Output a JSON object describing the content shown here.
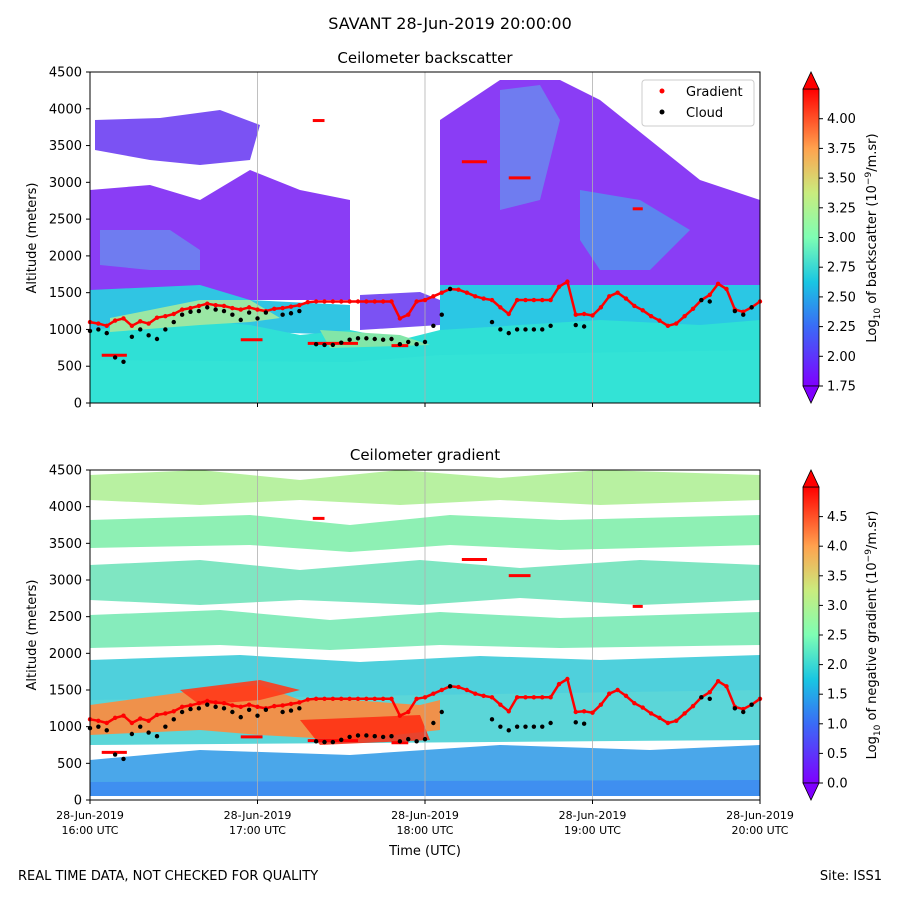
{
  "figure": {
    "suptitle": "SAVANT 28-Jun-2019 20:00:00",
    "footer_left": "REAL TIME DATA, NOT CHECKED FOR QUALITY",
    "footer_right": "Site: ISS1",
    "xlabel": "Time (UTC)",
    "x_ticks": [
      {
        "line1": "28-Jun-2019",
        "line2": "16:00 UTC"
      },
      {
        "line1": "28-Jun-2019",
        "line2": "17:00 UTC"
      },
      {
        "line1": "28-Jun-2019",
        "line2": "18:00 UTC"
      },
      {
        "line1": "28-Jun-2019",
        "line2": "19:00 UTC"
      },
      {
        "line1": "28-Jun-2019",
        "line2": "20:00 UTC"
      }
    ],
    "legend": [
      {
        "label": "Gradient",
        "color": "#ff0000"
      },
      {
        "label": "Cloud",
        "color": "#000000"
      }
    ]
  },
  "chart_data": [
    {
      "type": "heatmap",
      "title": "Ceilometer backscatter",
      "xlabel": "",
      "ylabel": "Altitude (meters)",
      "xlim": [
        "16:00",
        "20:00"
      ],
      "ylim": [
        0,
        4500
      ],
      "y_ticks": [
        0,
        500,
        1000,
        1500,
        2000,
        2500,
        3000,
        3500,
        4000,
        4500
      ],
      "grid": "vertical at hourly ticks",
      "legend_position": "top-right",
      "colorbar": {
        "label": "Log10 of backscatter (10^-9/m.sr)",
        "range": [
          1.75,
          4.25
        ],
        "ticks": [
          "1.75",
          "2.00",
          "2.25",
          "2.50",
          "2.75",
          "3.00",
          "3.25",
          "3.50",
          "3.75",
          "4.00"
        ],
        "colormap": "rainbow",
        "extend": "both"
      }
    },
    {
      "type": "heatmap",
      "title": "Ceilometer gradient",
      "xlabel": "Time (UTC)",
      "ylabel": "Altitude (meters)",
      "xlim": [
        "16:00",
        "20:00"
      ],
      "ylim": [
        0,
        4500
      ],
      "y_ticks": [
        0,
        500,
        1000,
        1500,
        2000,
        2500,
        3000,
        3500,
        4000,
        4500
      ],
      "grid": "vertical at hourly ticks",
      "colorbar": {
        "label": "Log10 of negative gradient (10^-9/m.sr)",
        "range": [
          0.0,
          5.0
        ],
        "ticks": [
          "0.0",
          "0.5",
          "1.0",
          "1.5",
          "2.0",
          "2.5",
          "3.0",
          "3.5",
          "4.0",
          "4.5"
        ],
        "colormap": "rainbow",
        "extend": "both"
      }
    }
  ],
  "series": {
    "gradient_points": [
      [
        16.0,
        1100
      ],
      [
        16.05,
        1080
      ],
      [
        16.1,
        1050
      ],
      [
        16.15,
        1120
      ],
      [
        16.2,
        1150
      ],
      [
        16.25,
        1050
      ],
      [
        16.3,
        1110
      ],
      [
        16.35,
        1080
      ],
      [
        16.4,
        1160
      ],
      [
        16.45,
        1180
      ],
      [
        16.5,
        1210
      ],
      [
        16.55,
        1270
      ],
      [
        16.6,
        1290
      ],
      [
        16.65,
        1320
      ],
      [
        16.7,
        1350
      ],
      [
        16.75,
        1330
      ],
      [
        16.8,
        1320
      ],
      [
        16.85,
        1290
      ],
      [
        16.9,
        1270
      ],
      [
        16.95,
        1300
      ],
      [
        17.0,
        1270
      ],
      [
        17.05,
        1250
      ],
      [
        17.1,
        1280
      ],
      [
        17.15,
        1290
      ],
      [
        17.2,
        1310
      ],
      [
        17.25,
        1330
      ],
      [
        17.3,
        1370
      ],
      [
        17.35,
        1380
      ],
      [
        17.4,
        1380
      ],
      [
        17.45,
        1380
      ],
      [
        17.5,
        1380
      ],
      [
        17.55,
        1380
      ],
      [
        17.6,
        1380
      ],
      [
        17.65,
        1380
      ],
      [
        17.7,
        1380
      ],
      [
        17.75,
        1380
      ],
      [
        17.8,
        1380
      ],
      [
        17.85,
        1150
      ],
      [
        17.9,
        1200
      ],
      [
        17.95,
        1380
      ],
      [
        18.0,
        1400
      ],
      [
        18.05,
        1450
      ],
      [
        18.1,
        1500
      ],
      [
        18.15,
        1550
      ],
      [
        18.2,
        1540
      ],
      [
        18.25,
        1500
      ],
      [
        18.3,
        1450
      ],
      [
        18.35,
        1420
      ],
      [
        18.4,
        1400
      ],
      [
        18.45,
        1300
      ],
      [
        18.5,
        1210
      ],
      [
        18.55,
        1400
      ],
      [
        18.6,
        1400
      ],
      [
        18.65,
        1400
      ],
      [
        18.7,
        1400
      ],
      [
        18.75,
        1400
      ],
      [
        18.8,
        1580
      ],
      [
        18.85,
        1650
      ],
      [
        18.9,
        1200
      ],
      [
        18.95,
        1210
      ],
      [
        19.0,
        1190
      ],
      [
        19.05,
        1300
      ],
      [
        19.1,
        1450
      ],
      [
        19.15,
        1500
      ],
      [
        19.2,
        1420
      ],
      [
        19.25,
        1320
      ],
      [
        19.3,
        1260
      ],
      [
        19.35,
        1180
      ],
      [
        19.4,
        1120
      ],
      [
        19.45,
        1050
      ],
      [
        19.5,
        1080
      ],
      [
        19.55,
        1180
      ],
      [
        19.6,
        1280
      ],
      [
        19.65,
        1400
      ],
      [
        19.7,
        1470
      ],
      [
        19.75,
        1620
      ],
      [
        19.8,
        1550
      ],
      [
        19.85,
        1270
      ],
      [
        19.9,
        1240
      ],
      [
        19.95,
        1300
      ],
      [
        20.0,
        1380
      ]
    ],
    "cloud_points": [
      [
        16.0,
        980
      ],
      [
        16.05,
        1000
      ],
      [
        16.1,
        950
      ],
      [
        16.15,
        620
      ],
      [
        16.2,
        560
      ],
      [
        16.25,
        900
      ],
      [
        16.3,
        1000
      ],
      [
        16.35,
        920
      ],
      [
        16.4,
        870
      ],
      [
        16.45,
        1000
      ],
      [
        16.5,
        1100
      ],
      [
        16.55,
        1200
      ],
      [
        16.6,
        1240
      ],
      [
        16.65,
        1250
      ],
      [
        16.7,
        1300
      ],
      [
        16.75,
        1270
      ],
      [
        16.8,
        1250
      ],
      [
        16.85,
        1200
      ],
      [
        16.9,
        1130
      ],
      [
        16.95,
        1230
      ],
      [
        17.0,
        1150
      ],
      [
        17.05,
        1230
      ],
      [
        17.15,
        1200
      ],
      [
        17.2,
        1220
      ],
      [
        17.25,
        1250
      ],
      [
        17.35,
        800
      ],
      [
        17.4,
        790
      ],
      [
        17.45,
        790
      ],
      [
        17.5,
        820
      ],
      [
        17.55,
        860
      ],
      [
        17.6,
        880
      ],
      [
        17.65,
        880
      ],
      [
        17.7,
        870
      ],
      [
        17.75,
        860
      ],
      [
        17.8,
        870
      ],
      [
        17.85,
        800
      ],
      [
        17.9,
        830
      ],
      [
        17.95,
        800
      ],
      [
        18.0,
        830
      ],
      [
        18.05,
        1050
      ],
      [
        18.1,
        1200
      ],
      [
        18.15,
        1550
      ],
      [
        18.4,
        1100
      ],
      [
        18.45,
        1000
      ],
      [
        18.5,
        950
      ],
      [
        18.55,
        1000
      ],
      [
        18.6,
        1000
      ],
      [
        18.65,
        1000
      ],
      [
        18.7,
        1000
      ],
      [
        18.75,
        1050
      ],
      [
        18.9,
        1060
      ],
      [
        18.95,
        1040
      ],
      [
        19.65,
        1400
      ],
      [
        19.7,
        1380
      ],
      [
        19.85,
        1250
      ],
      [
        19.9,
        1200
      ],
      [
        19.95,
        1300
      ]
    ],
    "gradient_segments": [
      [
        16.07,
        16.22,
        650
      ],
      [
        16.9,
        17.03,
        860
      ],
      [
        17.3,
        17.6,
        810
      ],
      [
        17.8,
        17.9,
        780
      ],
      [
        17.33,
        17.4,
        3840
      ],
      [
        18.22,
        18.37,
        3280
      ],
      [
        18.5,
        18.63,
        3060
      ],
      [
        19.24,
        19.3,
        2640
      ]
    ]
  }
}
